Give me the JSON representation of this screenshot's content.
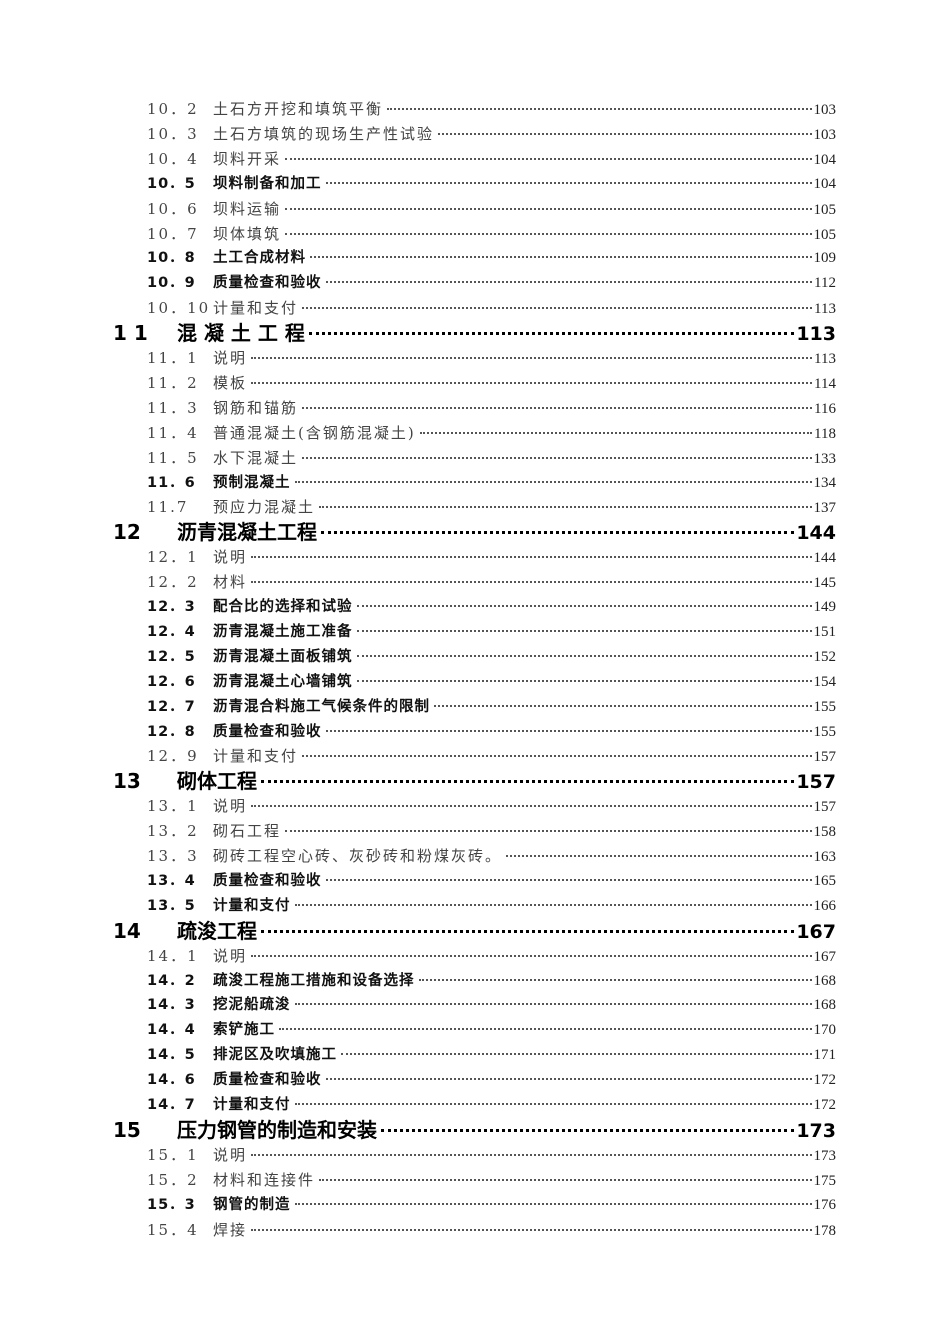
{
  "toc": [
    {
      "level": "sub",
      "style": "light",
      "num": "10．2",
      "title": "土石方开挖和填筑平衡",
      "page": "103"
    },
    {
      "level": "sub",
      "style": "light",
      "num": "10．3",
      "title": "土石方填筑的现场生产性试验",
      "page": "103"
    },
    {
      "level": "sub",
      "style": "light",
      "num": "10．4",
      "title": "坝料开采",
      "page": "104"
    },
    {
      "level": "sub",
      "style": "bold",
      "num": "10．5",
      "title": "坝料制备和加工",
      "page": "104"
    },
    {
      "level": "sub",
      "style": "light",
      "num": "10．6",
      "title": "坝料运输",
      "page": "105"
    },
    {
      "level": "sub",
      "style": "light",
      "num": "10．7",
      "title": "坝体填筑",
      "page": "105"
    },
    {
      "level": "sub",
      "style": "bold",
      "num": "10．8",
      "title": "土工合成材料",
      "page": "109"
    },
    {
      "level": "sub",
      "style": "bold",
      "num": "10．9",
      "title": "质量检查和验收",
      "page": "112"
    },
    {
      "level": "sub",
      "style": "light",
      "num": "10．10",
      "title": "计量和支付",
      "page": "113"
    },
    {
      "level": "main",
      "style": "bold",
      "num": "1 1",
      "title": "混 凝 土 工 程",
      "page": "113"
    },
    {
      "level": "sub",
      "style": "light",
      "num": "11．1",
      "title": "说明",
      "page": "113"
    },
    {
      "level": "sub",
      "style": "light",
      "num": "11．2",
      "title": "模板",
      "page": "114"
    },
    {
      "level": "sub",
      "style": "light",
      "num": "11．3",
      "title": "钢筋和锚筋",
      "page": "116"
    },
    {
      "level": "sub",
      "style": "light",
      "num": "11．4",
      "title": "普通混凝土(含钢筋混凝土)",
      "page": "118"
    },
    {
      "level": "sub",
      "style": "light",
      "num": "11．5",
      "title": "水下混凝土",
      "page": "133"
    },
    {
      "level": "sub",
      "style": "bold",
      "num": "11．6",
      "title": "预制混凝土",
      "page": "134"
    },
    {
      "level": "sub",
      "style": "light",
      "num": "11.7",
      "title": "预应力混凝土",
      "page": "137"
    },
    {
      "level": "main",
      "style": "bold",
      "num": "12",
      "title": "沥青混凝土工程",
      "page": "144"
    },
    {
      "level": "sub",
      "style": "light",
      "num": "12．1",
      "title": "说明",
      "page": "144"
    },
    {
      "level": "sub",
      "style": "light",
      "num": "12．2",
      "title": "材料",
      "page": "145"
    },
    {
      "level": "sub",
      "style": "bold",
      "num": "12．3",
      "title": "配合比的选择和试验",
      "page": "149"
    },
    {
      "level": "sub",
      "style": "bold",
      "num": "12．4",
      "title": "沥青混凝土施工准备",
      "page": "151"
    },
    {
      "level": "sub",
      "style": "bold",
      "num": "12．5",
      "title": "沥青混凝土面板铺筑",
      "page": "152"
    },
    {
      "level": "sub",
      "style": "bold",
      "num": "12．6",
      "title": "沥青混凝土心墙铺筑",
      "page": "154"
    },
    {
      "level": "sub",
      "style": "bold",
      "num": "12．7",
      "title": "沥青混合料施工气候条件的限制",
      "page": "155"
    },
    {
      "level": "sub",
      "style": "bold",
      "num": "12．8",
      "title": "质量检查和验收",
      "page": "155"
    },
    {
      "level": "sub",
      "style": "light",
      "num": "12．9",
      "title": "计量和支付",
      "page": "157"
    },
    {
      "level": "main",
      "style": "bold",
      "num": "13",
      "title": "砌体工程",
      "page": "157"
    },
    {
      "level": "sub",
      "style": "light",
      "num": "13．1",
      "title": "说明",
      "page": "157"
    },
    {
      "level": "sub",
      "style": "light",
      "num": "13．2",
      "title": "砌石工程",
      "page": "158"
    },
    {
      "level": "sub",
      "style": "light",
      "num": "13．3",
      "title": "砌砖工程空心砖、灰砂砖和粉煤灰砖。",
      "page": "163"
    },
    {
      "level": "sub",
      "style": "bold",
      "num": "13．4",
      "title": "质量检查和验收",
      "page": "165"
    },
    {
      "level": "sub",
      "style": "bold",
      "num": "13．5",
      "title": "计量和支付",
      "page": "166"
    },
    {
      "level": "main",
      "style": "bold",
      "num": "14",
      "title": "疏浚工程",
      "page": "167"
    },
    {
      "level": "sub",
      "style": "light",
      "num": "14．1",
      "title": "说明",
      "page": "167"
    },
    {
      "level": "sub",
      "style": "bold",
      "num": "14．2",
      "title": "疏浚工程施工措施和设备选择",
      "page": "168"
    },
    {
      "level": "sub",
      "style": "bold",
      "num": "14．3",
      "title": "挖泥船疏浚",
      "page": "168"
    },
    {
      "level": "sub",
      "style": "bold",
      "num": "14．4",
      "title": "索铲施工",
      "page": "170"
    },
    {
      "level": "sub",
      "style": "bold",
      "num": "14．5",
      "title": "排泥区及吹填施工",
      "page": "171"
    },
    {
      "level": "sub",
      "style": "bold",
      "num": "14．6",
      "title": "质量检查和验收",
      "page": "172"
    },
    {
      "level": "sub",
      "style": "bold",
      "num": "14．7",
      "title": "计量和支付",
      "page": "172"
    },
    {
      "level": "main",
      "style": "bold",
      "num": "15",
      "title": "压力钢管的制造和安装",
      "page": "173"
    },
    {
      "level": "sub",
      "style": "light",
      "num": "15．1",
      "title": "说明",
      "page": "173"
    },
    {
      "level": "sub",
      "style": "light",
      "num": "15．2",
      "title": "材料和连接件",
      "page": "175"
    },
    {
      "level": "sub",
      "style": "bold",
      "num": "15．3",
      "title": "钢管的制造",
      "page": "176"
    },
    {
      "level": "sub",
      "style": "light",
      "num": "15．4",
      "title": "焊接",
      "page": "178"
    }
  ]
}
